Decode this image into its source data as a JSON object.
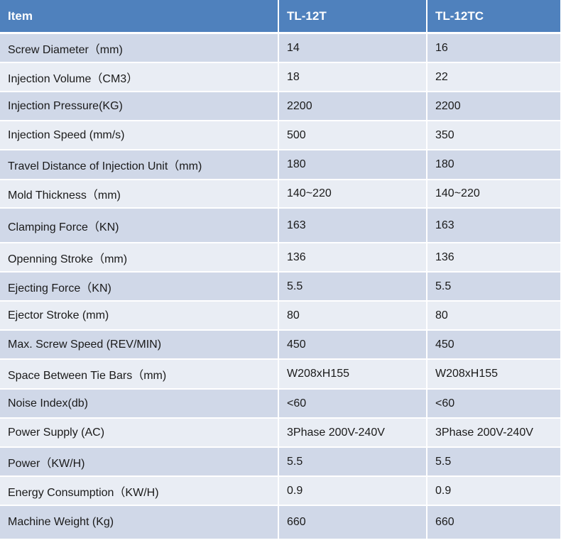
{
  "table": {
    "headers": [
      "Item",
      "TL-12T",
      "TL-12TC"
    ],
    "rows": [
      [
        "Screw Diameter（mm)",
        "14",
        "16"
      ],
      [
        "Injection Volume（CM3）",
        "18",
        "22"
      ],
      [
        "Injection Pressure(KG)",
        "2200",
        "2200"
      ],
      [
        "Injection Speed (mm/s)",
        "500",
        "350"
      ],
      [
        "Travel Distance of Injection Unit（mm)",
        "180",
        "180"
      ],
      [
        "Mold Thickness（mm)",
        "140~220",
        "140~220"
      ],
      [
        "Clamping Force（KN)",
        "163",
        "163"
      ],
      [
        "Openning Stroke（mm)",
        "136",
        "136"
      ],
      [
        "Ejecting Force（KN)",
        "5.5",
        "5.5"
      ],
      [
        "Ejector Stroke (mm)",
        "80",
        "80"
      ],
      [
        "Max. Screw Speed (REV/MIN)",
        "450",
        "450"
      ],
      [
        "Space Between Tie Bars（mm)",
        "W208xH155",
        "W208xH155"
      ],
      [
        "Noise Index(db)",
        "<60",
        "<60"
      ],
      [
        "Power Supply (AC)",
        "3Phase 200V-240V",
        "3Phase 200V-240V"
      ],
      [
        "Power（KW/H)",
        "5.5",
        "5.5"
      ],
      [
        "Energy Consumption（KW/H)",
        "0.9",
        "0.9"
      ],
      [
        "Machine Weight (Kg)",
        "660",
        "660"
      ]
    ]
  },
  "colors": {
    "header_bg": "#4f81bd",
    "header_text": "#ffffff",
    "row_odd_bg": "#d0d8e8",
    "row_even_bg": "#e9edf4"
  }
}
